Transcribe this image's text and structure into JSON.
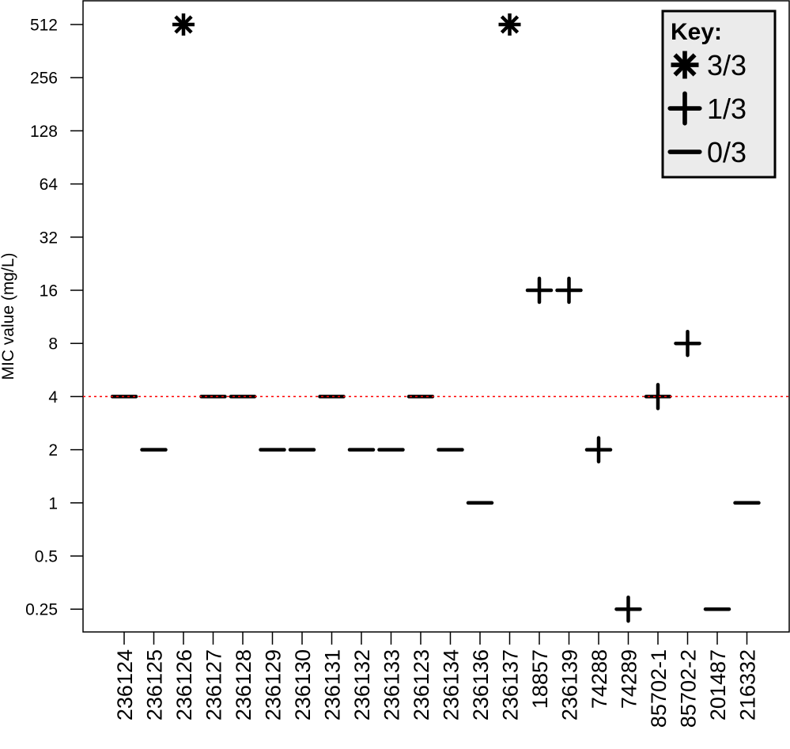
{
  "chart_data": {
    "type": "scatter",
    "title": "",
    "xlabel": "",
    "ylabel": "MIC value (mg/L)",
    "y_scale": "log2",
    "ylim": [
      0.25,
      512
    ],
    "y_ticks": [
      512,
      256,
      128,
      64,
      32,
      16,
      8,
      4,
      2,
      1,
      0.5,
      0.25
    ],
    "y_tick_labels": [
      "512",
      "256",
      "128",
      "64",
      "32",
      "16",
      "8",
      "4",
      "2",
      "1",
      "0.5",
      "0.25"
    ],
    "grid": false,
    "reference_line": {
      "y": 4,
      "style": "dotted",
      "color": "#ff0000"
    },
    "categories": [
      "236124",
      "236125",
      "236126",
      "236127",
      "236128",
      "236129",
      "236130",
      "236131",
      "236132",
      "236133",
      "236123",
      "236134",
      "236136",
      "236137",
      "18857",
      "236139",
      "74288",
      "74289",
      "85702-1",
      "85702-2",
      "201487",
      "216332"
    ],
    "values": [
      4,
      2,
      512,
      4,
      4,
      2,
      2,
      4,
      2,
      2,
      4,
      2,
      1,
      512,
      16,
      16,
      2,
      0.25,
      4,
      8,
      0.25,
      1
    ],
    "markers": [
      "0/3",
      "0/3",
      "3/3",
      "0/3",
      "0/3",
      "0/3",
      "0/3",
      "0/3",
      "0/3",
      "0/3",
      "0/3",
      "0/3",
      "0/3",
      "3/3",
      "1/3",
      "1/3",
      "1/3",
      "1/3",
      "1/3",
      "1/3",
      "0/3",
      "0/3"
    ],
    "legend": {
      "title": "Key:",
      "position": "top-right",
      "entries": [
        {
          "symbol": "asterisk",
          "label": "3/3"
        },
        {
          "symbol": "plus",
          "label": "1/3"
        },
        {
          "symbol": "minus",
          "label": "0/3"
        }
      ]
    }
  },
  "colors": {
    "reference_line": "#ff0000",
    "marker": "#000000",
    "legend_bg": "#ebebeb",
    "frame": "#000000"
  }
}
